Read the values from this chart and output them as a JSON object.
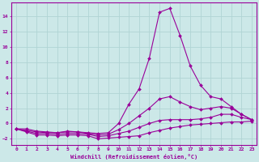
{
  "title": "",
  "xlabel": "Windchill (Refroidissement éolien,°C)",
  "ylabel": "",
  "bg_color": "#cce8e8",
  "grid_color": "#b0d4d4",
  "line_color": "#990099",
  "xlim": [
    -0.5,
    23.5
  ],
  "ylim": [
    -2.8,
    15.8
  ],
  "xticks": [
    0,
    1,
    2,
    3,
    4,
    5,
    6,
    7,
    8,
    9,
    10,
    11,
    12,
    13,
    14,
    15,
    16,
    17,
    18,
    19,
    20,
    21,
    22,
    23
  ],
  "yticks": [
    -2,
    0,
    2,
    4,
    6,
    8,
    10,
    12,
    14
  ],
  "curves": [
    {
      "x": [
        0,
        1,
        2,
        3,
        4,
        5,
        6,
        7,
        8,
        9,
        10,
        11,
        12,
        13,
        14,
        15,
        16,
        17,
        18,
        19,
        20,
        21,
        22,
        23
      ],
      "y": [
        -0.7,
        -1.1,
        -1.5,
        -1.5,
        -1.6,
        -1.5,
        -1.5,
        -1.6,
        -2.0,
        -1.9,
        -1.8,
        -1.7,
        -1.6,
        -1.2,
        -0.9,
        -0.6,
        -0.4,
        -0.2,
        -0.1,
        0.0,
        0.1,
        0.2,
        0.2,
        0.3
      ]
    },
    {
      "x": [
        0,
        1,
        2,
        3,
        4,
        5,
        6,
        7,
        8,
        9,
        10,
        11,
        12,
        13,
        14,
        15,
        16,
        17,
        18,
        19,
        20,
        21,
        22,
        23
      ],
      "y": [
        -0.7,
        -1.0,
        -1.3,
        -1.3,
        -1.4,
        -1.3,
        -1.3,
        -1.4,
        -1.7,
        -1.6,
        -1.3,
        -1.0,
        -0.5,
        0.0,
        0.4,
        0.5,
        0.5,
        0.5,
        0.6,
        0.8,
        1.2,
        1.2,
        0.8,
        0.5
      ]
    },
    {
      "x": [
        0,
        1,
        2,
        3,
        4,
        5,
        6,
        7,
        8,
        9,
        10,
        11,
        12,
        13,
        14,
        15,
        16,
        17,
        18,
        19,
        20,
        21,
        22,
        23
      ],
      "y": [
        -0.7,
        -0.9,
        -1.1,
        -1.2,
        -1.2,
        -1.1,
        -1.1,
        -1.3,
        -1.5,
        -1.4,
        -0.8,
        0.0,
        1.0,
        2.0,
        3.2,
        3.5,
        2.8,
        2.2,
        1.8,
        2.0,
        2.2,
        2.0,
        1.2,
        0.5
      ]
    },
    {
      "x": [
        0,
        1,
        2,
        3,
        4,
        5,
        6,
        7,
        8,
        9,
        10,
        11,
        12,
        13,
        14,
        15,
        16,
        17,
        18,
        19,
        20,
        21,
        22,
        23
      ],
      "y": [
        -0.7,
        -0.7,
        -1.0,
        -1.1,
        -1.2,
        -1.0,
        -1.1,
        -1.2,
        -1.3,
        -1.2,
        0.0,
        2.5,
        4.5,
        8.5,
        14.5,
        15.0,
        11.5,
        7.5,
        5.0,
        3.5,
        3.2,
        2.2,
        1.2,
        0.5
      ]
    }
  ]
}
